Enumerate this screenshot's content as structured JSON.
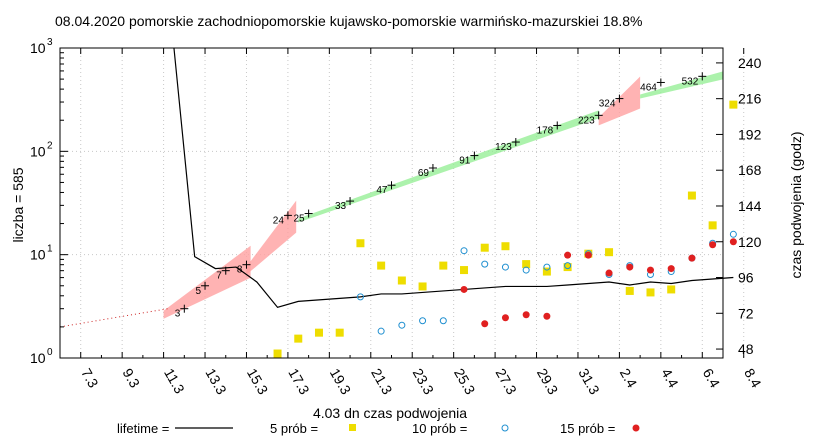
{
  "chart_data": {
    "type": "scatter",
    "title": "08.04.2020 pomorskie zachodniopomorskie kujawsko-pomorskie warmińsko-mazurskiei 18.8%",
    "xlabel": "4.03 dn czas podwojenia",
    "ylabel": "liczba = 585",
    "y2label": "czas podwojenia (godz)",
    "x_ticks": [
      "7.3",
      "9.3",
      "11.3",
      "13.3",
      "15.3",
      "17.3",
      "19.3",
      "21.3",
      "23.3",
      "25.3",
      "27.3",
      "29.3",
      "31.3",
      "2.4",
      "4.4",
      "6.4",
      "8.4"
    ],
    "xlim_day": [
      6,
      38
    ],
    "ylim": [
      1,
      1000
    ],
    "yscale": "log",
    "y_ticks": [
      {
        "v": 1,
        "m": "0"
      },
      {
        "v": 10,
        "m": "1"
      },
      {
        "v": 100,
        "m": "2"
      },
      {
        "v": 1000,
        "m": "3"
      }
    ],
    "y2lim": [
      42,
      250
    ],
    "y2_ticks": [
      48,
      72,
      96,
      120,
      144,
      168,
      192,
      216,
      240
    ],
    "grid": true,
    "legend_placement": "bottom",
    "colors": {
      "fit_ok": "#90ee90",
      "fit_bad": "#ffa0a0",
      "lifetime": "#000000",
      "p5": "#eedd00",
      "p10": "#1f8fd0",
      "p15": "#e02020",
      "fit_line": "#cc2020"
    },
    "cases": {
      "day": [
        11,
        12,
        13,
        14,
        15,
        16,
        17,
        18,
        19,
        20,
        21,
        22,
        23,
        24,
        25,
        26,
        27,
        28,
        29,
        30,
        31,
        32,
        33,
        34,
        35,
        36,
        37,
        38
      ],
      "value": [
        3,
        5,
        7,
        8,
        24,
        25,
        33,
        47,
        69,
        91,
        123,
        178,
        223,
        324,
        464,
        532
      ],
      "day_with_value": [
        12,
        13,
        14,
        15,
        17,
        18,
        20,
        22,
        24,
        26,
        28,
        30,
        32,
        33,
        35,
        37
      ],
      "labels": [
        "3",
        "5",
        "7",
        "8",
        "24",
        "25",
        "33",
        "47",
        "69",
        "91",
        "123",
        "178",
        "223",
        "324",
        "464",
        "532"
      ]
    },
    "series": [
      {
        "name": "lifetime =",
        "style": "line",
        "axis": "y2",
        "points": [
          [
            11,
            255
          ],
          [
            12,
            110
          ],
          [
            13,
            102
          ],
          [
            14,
            103
          ],
          [
            15,
            93
          ],
          [
            16,
            76
          ],
          [
            17,
            80
          ],
          [
            18,
            81
          ],
          [
            19,
            82
          ],
          [
            20,
            83
          ],
          [
            21,
            85
          ],
          [
            22,
            85
          ],
          [
            23,
            86
          ],
          [
            24,
            87
          ],
          [
            25,
            88
          ],
          [
            26,
            89
          ],
          [
            27,
            90
          ],
          [
            28,
            90
          ],
          [
            29,
            90
          ],
          [
            30,
            91
          ],
          [
            31,
            92
          ],
          [
            32,
            93
          ],
          [
            33,
            91
          ],
          [
            34,
            93
          ],
          [
            35,
            92
          ],
          [
            36,
            94
          ],
          [
            37,
            95
          ],
          [
            38,
            96
          ]
        ]
      },
      {
        "name": "5 prób =",
        "style": "square",
        "axis": "y2",
        "points": [
          [
            17,
            45
          ],
          [
            18,
            55
          ],
          [
            19,
            59
          ],
          [
            20,
            59
          ],
          [
            21,
            119
          ],
          [
            22,
            104
          ],
          [
            23,
            94
          ],
          [
            24,
            90
          ],
          [
            25,
            104
          ],
          [
            26,
            101
          ],
          [
            27,
            116
          ],
          [
            28,
            117
          ],
          [
            29,
            105
          ],
          [
            30,
            100
          ],
          [
            31,
            103
          ],
          [
            32,
            112
          ],
          [
            33,
            113
          ],
          [
            34,
            87
          ],
          [
            35,
            86
          ],
          [
            36,
            88
          ],
          [
            37,
            151
          ],
          [
            38,
            131
          ],
          [
            39,
            212
          ]
        ]
      },
      {
        "name": "10 prób =",
        "style": "circle",
        "axis": "y2",
        "points": [
          [
            21,
            83
          ],
          [
            22,
            60
          ],
          [
            23,
            64
          ],
          [
            24,
            67
          ],
          [
            25,
            67
          ],
          [
            26,
            114
          ],
          [
            27,
            105
          ],
          [
            28,
            103
          ],
          [
            29,
            101
          ],
          [
            30,
            103
          ],
          [
            31,
            104
          ],
          [
            32,
            112
          ],
          [
            33,
            98
          ],
          [
            34,
            104
          ],
          [
            35,
            98
          ],
          [
            36,
            100
          ],
          [
            37,
            109
          ],
          [
            38,
            119
          ],
          [
            39,
            125
          ]
        ]
      },
      {
        "name": "15 prób =",
        "style": "dot",
        "axis": "y2",
        "points": [
          [
            26,
            88
          ],
          [
            27,
            65
          ],
          [
            28,
            69
          ],
          [
            29,
            71
          ],
          [
            30,
            70
          ],
          [
            31,
            111
          ],
          [
            32,
            111
          ],
          [
            33,
            99
          ],
          [
            34,
            103
          ],
          [
            35,
            101
          ],
          [
            36,
            102
          ],
          [
            37,
            109
          ],
          [
            38,
            118
          ],
          [
            39,
            120
          ]
        ]
      }
    ],
    "fits": [
      {
        "from": 11,
        "to": 15.2,
        "ok": false
      },
      {
        "from": 15,
        "to": 17.4,
        "ok": false
      },
      {
        "from": 17.5,
        "to": 32,
        "ok": true
      },
      {
        "from": 32,
        "to": 34,
        "ok": false
      },
      {
        "from": 34,
        "to": 38,
        "ok": true
      }
    ],
    "legend": [
      {
        "label": "lifetime =",
        "style": "line"
      },
      {
        "label": "5 prób =",
        "style": "square"
      },
      {
        "label": "10 prób =",
        "style": "circle"
      },
      {
        "label": "15 prób =",
        "style": "dot"
      }
    ]
  }
}
